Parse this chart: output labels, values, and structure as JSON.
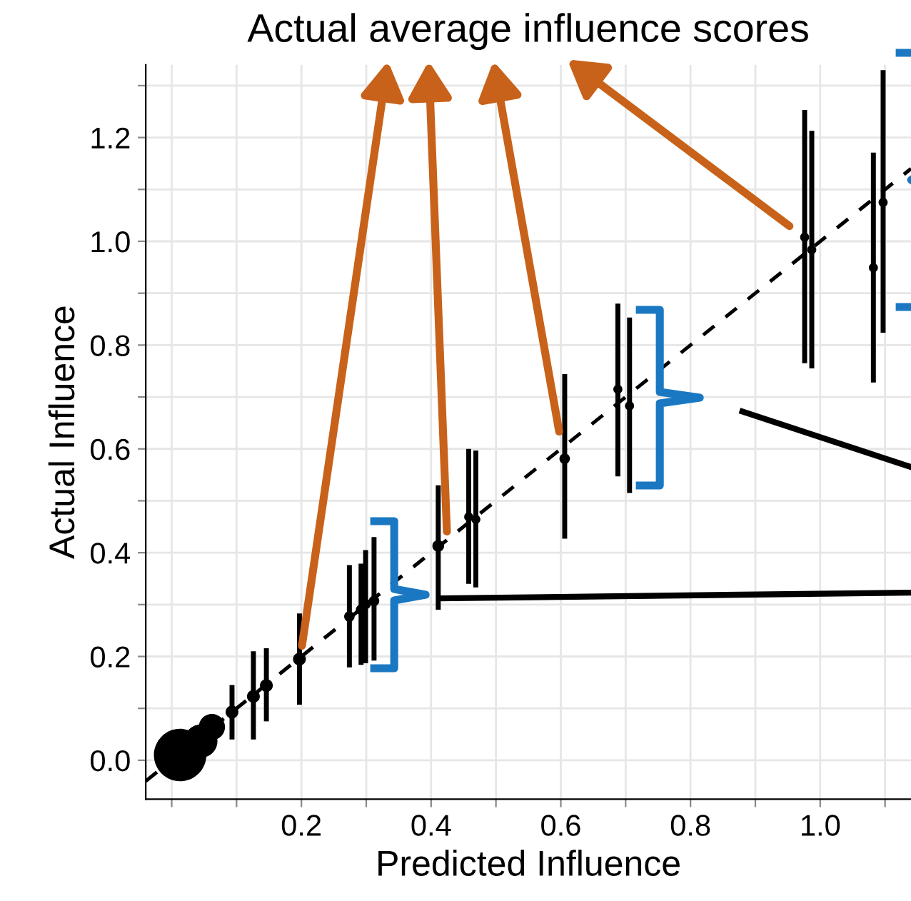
{
  "chart_data": {
    "type": "bubble",
    "title": "Actual average influence scores",
    "xlabel": "Predicted Influence",
    "ylabel": "Actual Influence",
    "xlim": [
      -0.04,
      1.14
    ],
    "ylim": [
      -0.075,
      1.34
    ],
    "xticks": [
      {
        "value": 0.0,
        "label": null
      },
      {
        "value": 0.1,
        "label": null
      },
      0.2,
      {
        "value": 0.3,
        "label": null
      },
      0.4,
      {
        "value": 0.5,
        "label": null
      },
      0.6,
      {
        "value": 0.7,
        "label": null
      },
      0.8,
      {
        "value": 0.9,
        "label": null
      },
      {
        "value": 1.0,
        "label": "1.0"
      },
      {
        "value": 1.1,
        "label": null
      }
    ],
    "yticks": [
      {
        "value": 0.0,
        "label": "0.0"
      },
      {
        "value": 0.1,
        "label": null
      },
      0.2,
      {
        "value": 0.3,
        "label": null
      },
      0.4,
      {
        "value": 0.5,
        "label": null
      },
      0.6,
      {
        "value": 0.7,
        "label": null
      },
      0.8,
      {
        "value": 0.9,
        "label": null
      },
      {
        "value": 1.0,
        "label": "1.0"
      },
      {
        "value": 1.1,
        "label": null
      },
      1.2,
      {
        "value": 1.3,
        "label": null
      }
    ],
    "grid": true,
    "series": [
      {
        "color": "#000000",
        "x": [
          0.013,
          0.045,
          0.062,
          0.093,
          0.126,
          0.146,
          0.197,
          0.274,
          0.292,
          0.299,
          0.312,
          0.411,
          0.458,
          0.469,
          0.606,
          0.688,
          0.706,
          0.976,
          0.987,
          1.082,
          1.097
        ],
        "values": [
          0.01,
          0.037,
          0.064,
          0.093,
          0.123,
          0.144,
          0.195,
          0.277,
          0.29,
          0.301,
          0.307,
          0.413,
          0.469,
          0.464,
          0.581,
          0.715,
          0.683,
          1.008,
          0.984,
          0.949,
          1.075
        ],
        "sizes": [
          1,
          0.4,
          0.25,
          0.06,
          0.06,
          0.06,
          0.06,
          0.04,
          0.04,
          0.04,
          0.04,
          0.05,
          0.03,
          0.03,
          0.04,
          0.03,
          0.03,
          0.03,
          0.03,
          0.03,
          0.03
        ],
        "errors": [
          null,
          null,
          null,
          [
            0.04,
            0.145
          ],
          [
            0.04,
            0.21
          ],
          [
            0.075,
            0.216
          ],
          [
            0.107,
            0.283
          ],
          [
            0.179,
            0.376
          ],
          [
            0.184,
            0.379
          ],
          [
            0.187,
            0.405
          ],
          [
            0.192,
            0.43
          ],
          [
            0.29,
            0.53
          ],
          [
            0.34,
            0.6
          ],
          [
            0.333,
            0.597
          ],
          [
            0.427,
            0.744
          ],
          [
            0.547,
            0.88
          ],
          [
            0.515,
            0.853
          ],
          [
            0.765,
            1.253
          ],
          [
            0.755,
            1.213
          ],
          [
            0.728,
            1.171
          ],
          [
            0.824,
            1.33
          ]
        ]
      },
      {
        "type": "line",
        "color": "#000000",
        "line_style": "dashed",
        "x": [
          -0.04,
          1.14
        ],
        "values": [
          -0.04,
          1.14
        ]
      },
      {
        "type": "line",
        "color": "#000000",
        "line_style": "solid",
        "x": [
          0.413,
          1.14
        ],
        "values": [
          0.312,
          0.323
        ]
      },
      {
        "type": "line",
        "color": "#000000",
        "line_style": "solid",
        "x": [
          0.88,
          1.14
        ],
        "values": [
          0.672,
          0.565
        ]
      }
    ]
  }
}
